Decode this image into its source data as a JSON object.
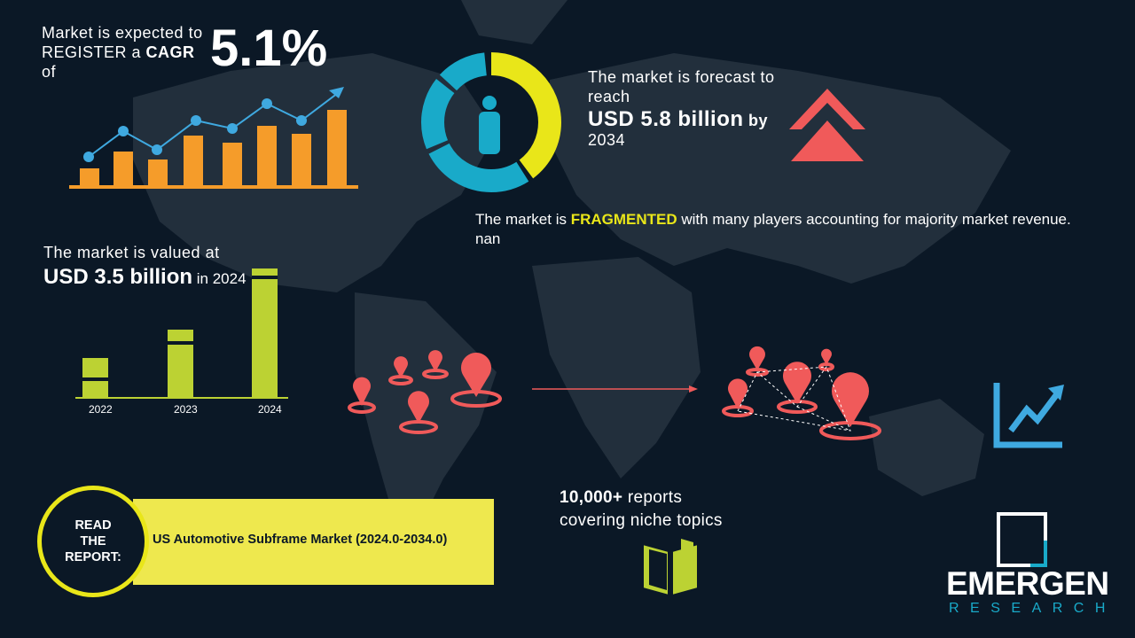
{
  "cagr": {
    "line1": "Market is expected to",
    "line2_pre": "REGISTER a ",
    "line2_bold": "CAGR",
    "line2_post": " of",
    "value": "5.1%"
  },
  "forecast": {
    "line1": "The market is forecast to",
    "line2": "reach",
    "value": "USD 5.8 billion",
    "by": " by",
    "year": "2034"
  },
  "fragmented": {
    "pre": "The market is ",
    "bold": "FRAGMENTED",
    "post": " with many players accounting for majority market revenue. nan"
  },
  "valued": {
    "line1": "The market is valued at",
    "value": "USD 3.5 billion",
    "post": " in 2024"
  },
  "bar_years": [
    "2022",
    "2023",
    "2024"
  ],
  "read_report": {
    "label_lines": [
      "READ",
      "THE",
      "REPORT:"
    ],
    "title": "US Automotive Subframe Market (2024.0-2034.0)"
  },
  "reports": {
    "line1_bold": "10,000+",
    "line1_post": " reports",
    "line2": "covering niche topics"
  },
  "logo": {
    "name": "EMERGEN",
    "sub": "RESEARCH"
  },
  "colors": {
    "background": "#0b1826",
    "map": "#222f3c",
    "orange": "#f59c2a",
    "blue": "#3fa9e0",
    "yellow": "#e9e619",
    "teal": "#19aac9",
    "coral": "#f05a5a",
    "lime": "#bcd233",
    "banner": "#eee84e"
  }
}
